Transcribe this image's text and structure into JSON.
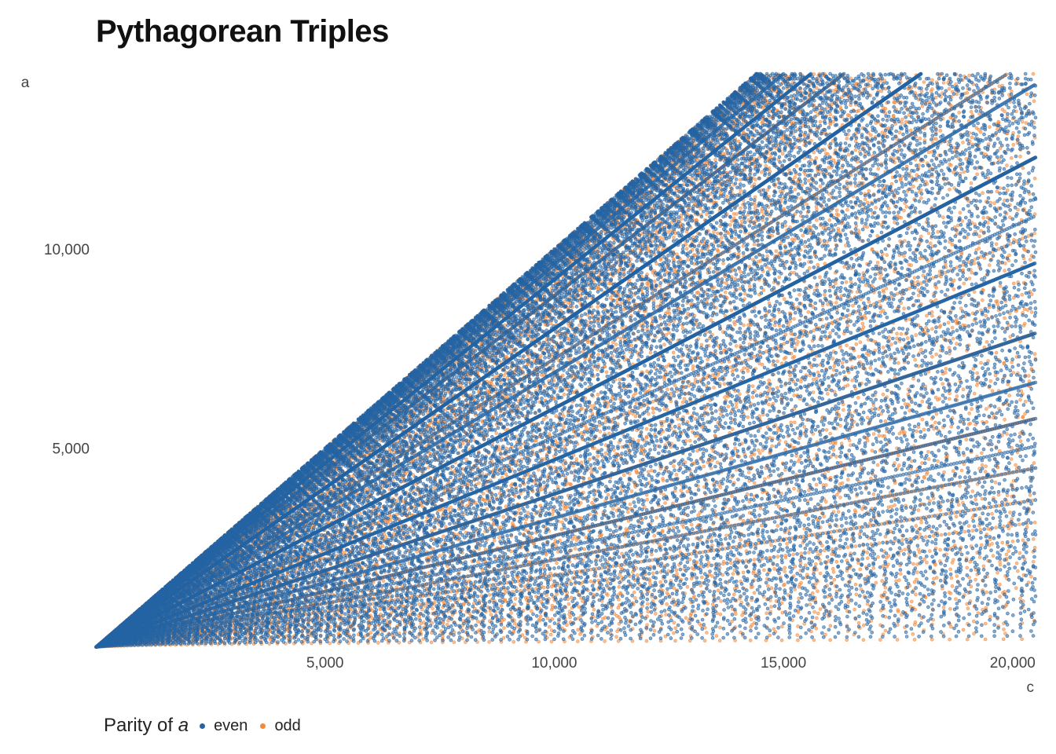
{
  "chart_data": {
    "type": "scatter",
    "title": "Pythagorean Triples",
    "xlabel": "c",
    "ylabel": "a",
    "xlim": [
      0,
      20500
    ],
    "ylim": [
      0,
      14400
    ],
    "x_ticks": [
      5000,
      10000,
      15000,
      20000
    ],
    "x_tick_labels": [
      "5,000",
      "10,000",
      "15,000",
      "20,000"
    ],
    "y_ticks": [
      5000,
      10000
    ],
    "y_tick_labels": [
      "5,000",
      "10,000"
    ],
    "legend": {
      "title_prefix": "Parity of ",
      "title_var": "a",
      "position": "bottom-left"
    },
    "series": [
      {
        "name": "even",
        "color": "#2464a4"
      },
      {
        "name": "odd",
        "color": "#f28a3c"
      }
    ],
    "grid": false,
    "notes_on_data": "Points (c, a) for Pythagorean triples a^2 + b^2 = c^2 with c up to about 20,500, filling the wedge between a = 0 and a = c/sqrt(2); dense ray-like families are visible."
  }
}
